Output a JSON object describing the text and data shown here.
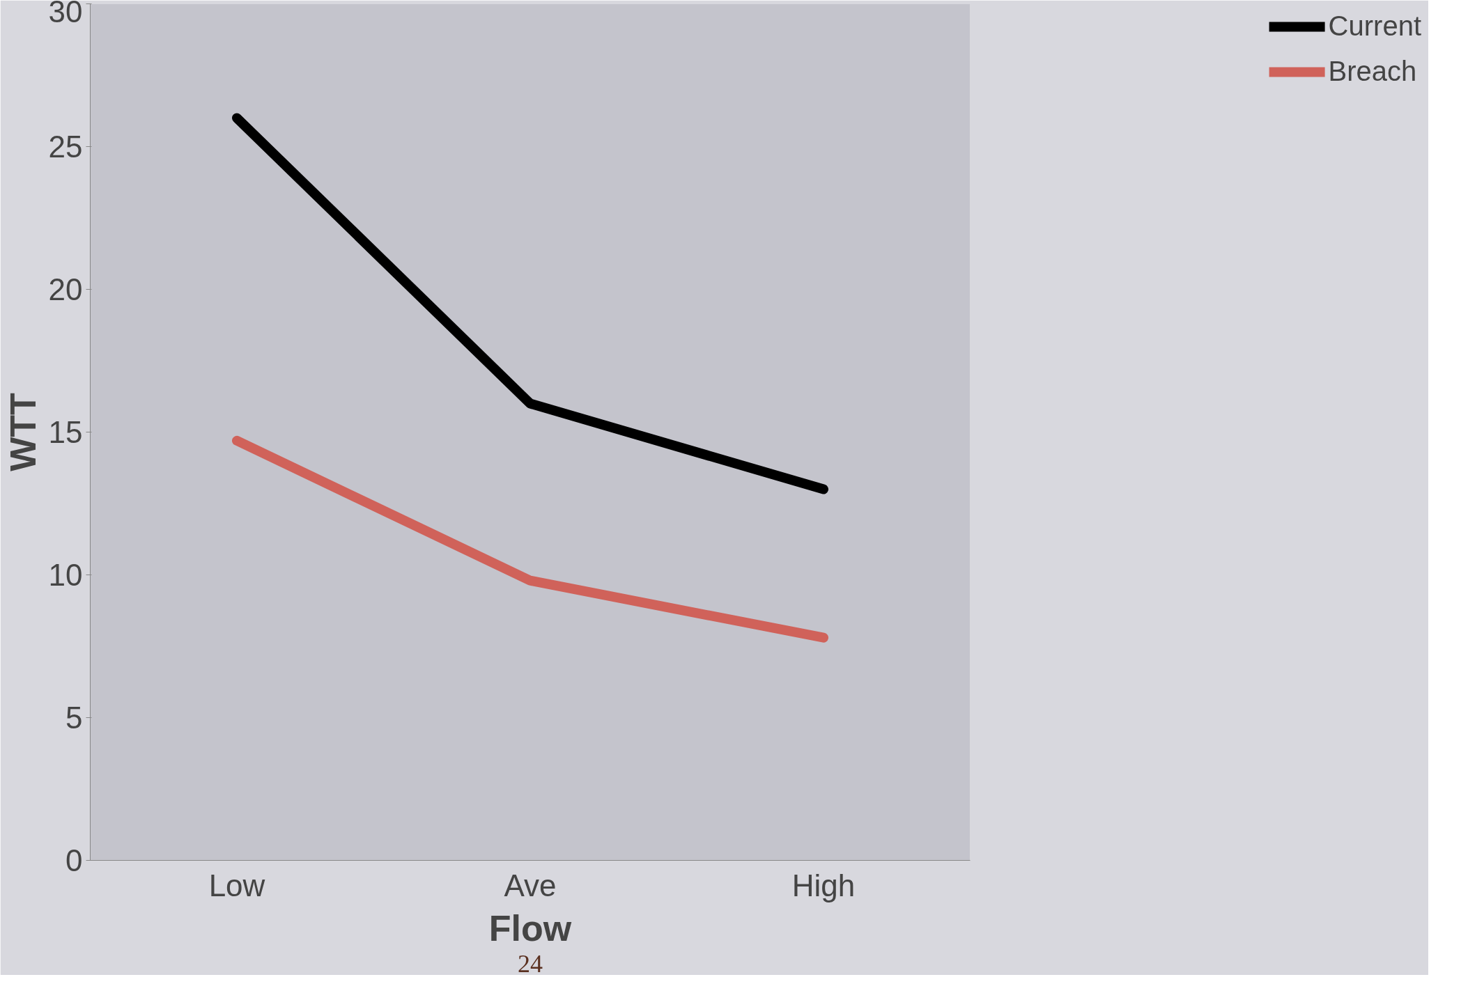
{
  "chart_data": {
    "type": "line",
    "xlabel": "Flow",
    "ylabel": "WTT",
    "categories": [
      "Low",
      "Ave",
      "High"
    ],
    "series": [
      {
        "name": "Current",
        "color": "#000000",
        "values": [
          26,
          16,
          13
        ]
      },
      {
        "name": "Breach",
        "color": "#d0625a",
        "values": [
          14.7,
          9.8,
          7.8
        ]
      }
    ],
    "ylim": [
      0,
      30
    ],
    "yticks": [
      0,
      5,
      10,
      15,
      20,
      25,
      30
    ],
    "grid": false,
    "legend": "right",
    "marker": "none",
    "line_style": "solid",
    "annotations": [
      "24"
    ]
  }
}
